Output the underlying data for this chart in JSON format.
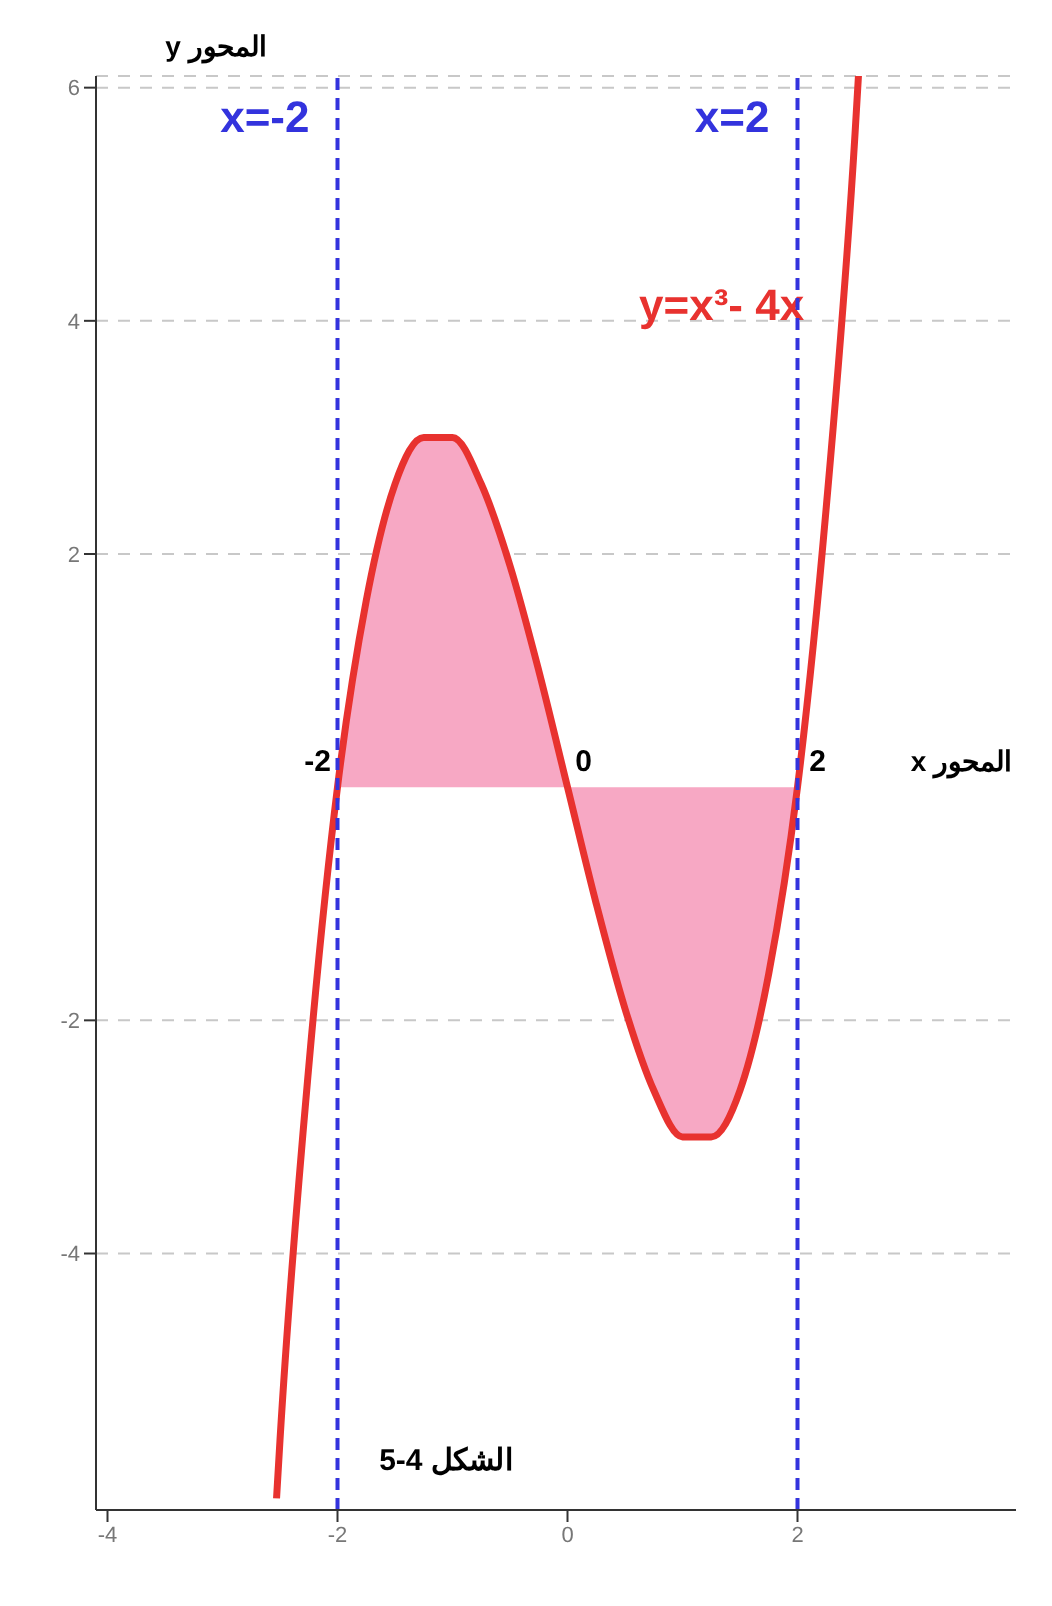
{
  "chart_data": {
    "type": "line",
    "xlabel": "المحور x",
    "ylabel": "المحور y",
    "xlim": [
      -4.1,
      3.9
    ],
    "ylim": [
      -6.2,
      6.1
    ],
    "xticks": [
      -4,
      -2,
      0,
      2
    ],
    "yticks": [
      -4,
      -2,
      2,
      4,
      6
    ],
    "grid": "y",
    "line_style": "solid",
    "marker": "none",
    "series": [
      {
        "type": "area",
        "color": "#f7a8c4",
        "x": [
          -2,
          -1.75,
          -1.5,
          -1.25,
          -1,
          -0.75,
          -0.5,
          -0.25,
          0,
          0.25,
          0.5,
          0.75,
          1,
          1.25,
          1.5,
          1.75,
          2
        ],
        "values": [
          0,
          1.6,
          2.6,
          3.0,
          3.0,
          2.6,
          1.9,
          1.0,
          0,
          -1.0,
          -1.9,
          -2.6,
          -3.0,
          -3.0,
          -2.6,
          -1.6,
          0
        ]
      },
      {
        "color": "#e8322f",
        "x": [
          -2.53,
          -2.5,
          -2.25,
          -2,
          -1.75,
          -1.5,
          -1.25,
          -1,
          -0.75,
          -0.5,
          -0.25,
          0,
          0.25,
          0.5,
          0.75,
          1,
          1.25,
          1.5,
          1.75,
          2,
          2.25,
          2.5,
          2.53
        ],
        "values": [
          -6.1,
          -5.6,
          -2.4,
          0,
          1.6,
          2.6,
          3.0,
          3.0,
          2.6,
          1.9,
          1.0,
          0,
          -1.0,
          -1.9,
          -2.6,
          -3.0,
          -3.0,
          -2.6,
          -1.6,
          0,
          2.4,
          5.6,
          6.1
        ]
      }
    ],
    "ref_lines": [
      {
        "axis": "x",
        "value": -2,
        "label": "x=-2",
        "color": "#3333dd",
        "line_style": "dashed"
      },
      {
        "axis": "x",
        "value": 2,
        "label": "x=2",
        "color": "#3333dd",
        "line_style": "dashed"
      }
    ],
    "annotations": [
      {
        "text": "-2",
        "x": -2,
        "y": 0
      },
      {
        "text": "0",
        "x": 0,
        "y": 0
      },
      {
        "text": "2",
        "x": 2,
        "y": 0
      },
      "y=x³- 4x",
      "الشكل 4-5"
    ]
  }
}
